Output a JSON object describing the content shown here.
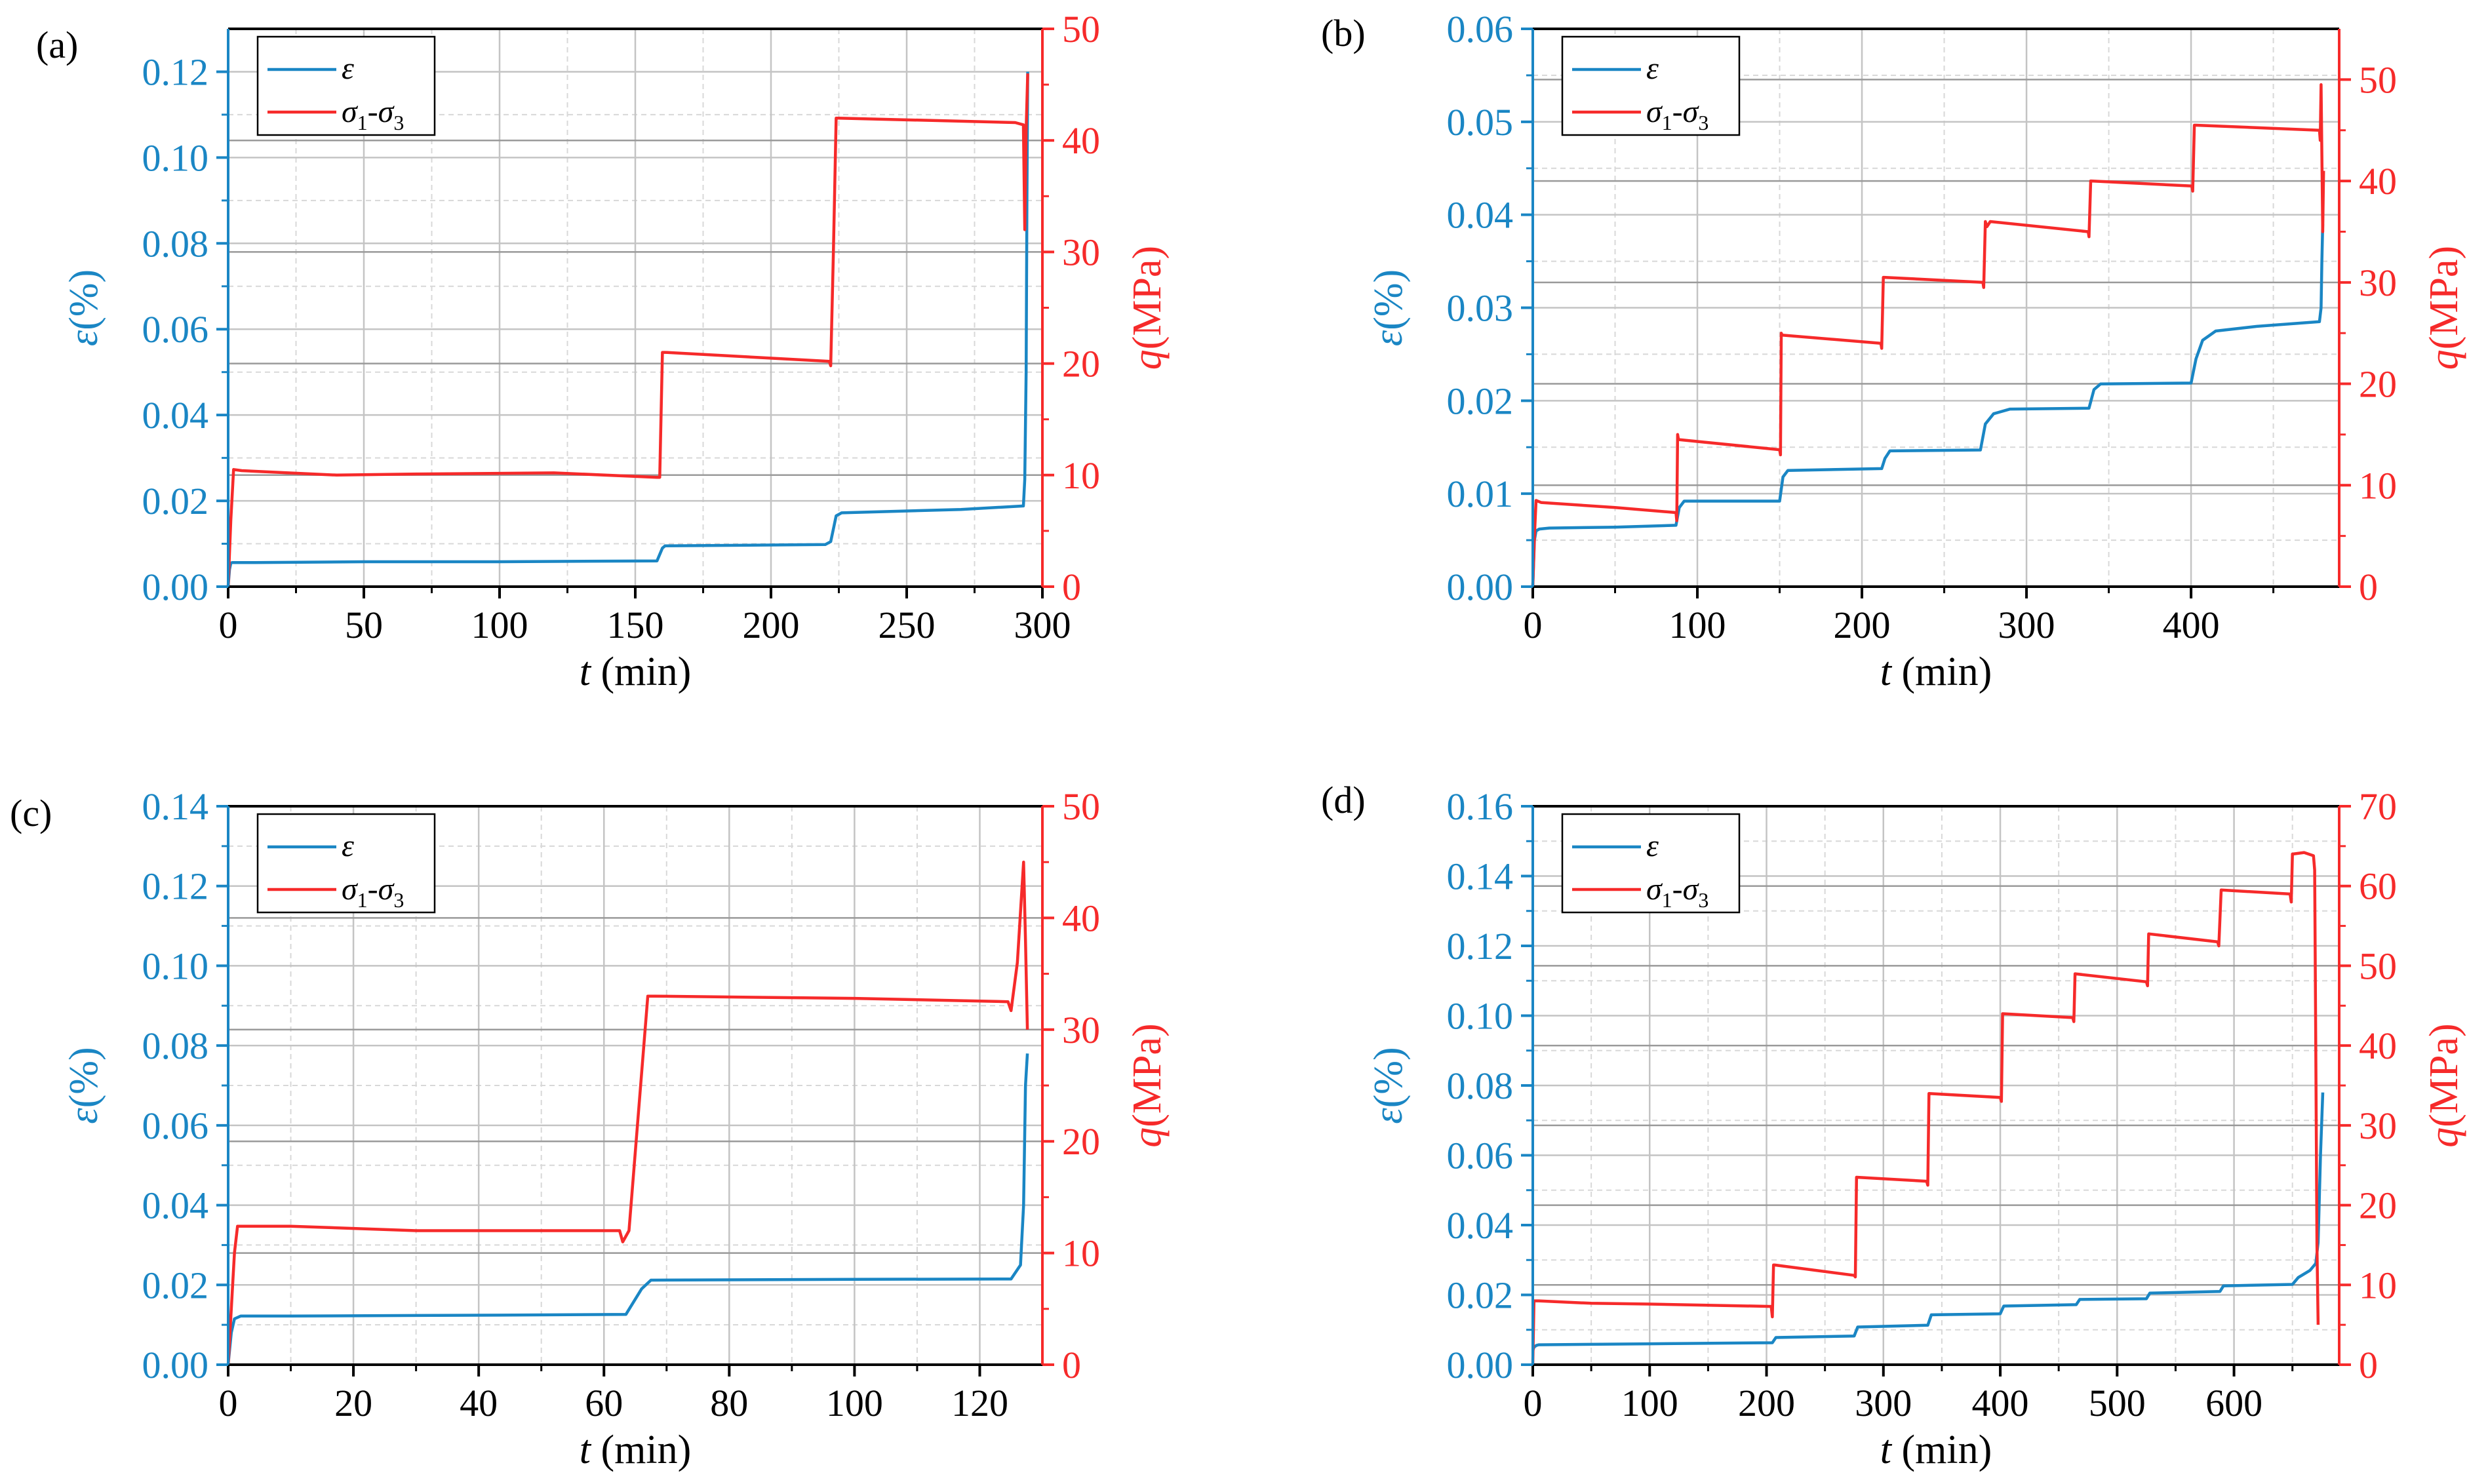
{
  "colors": {
    "strain": "#1a86c4",
    "stress": "#f62a2a",
    "grid": "#d8d8d8",
    "frame": "#000000"
  },
  "legend": {
    "strain_label": "ε",
    "stress_sigma": "σ",
    "stress_sub1": "1",
    "stress_dash": "-",
    "stress_sub3": "3"
  },
  "chart_data": [
    {
      "type": "line",
      "panel_label": "(a)",
      "xlabel_var": "t",
      "xlabel_unit": " (min)",
      "ylabel_left_var": "ε",
      "ylabel_left_unit": "(%)",
      "ylabel_right_var": "q",
      "ylabel_right_unit": "(MPa)",
      "xlim": [
        0,
        300
      ],
      "xticks": [
        0,
        50,
        100,
        150,
        200,
        250,
        300
      ],
      "ylim_left": [
        0,
        0.13
      ],
      "yticks_left": [
        0.0,
        0.02,
        0.04,
        0.06,
        0.08,
        0.1,
        0.12
      ],
      "yticks_left_decimals": 2,
      "ylim_right": [
        0,
        50
      ],
      "yticks_right": [
        0,
        10,
        20,
        30,
        40,
        50
      ],
      "series": [
        {
          "name": "ε",
          "axis": "left",
          "x": [
            0,
            0.5,
            1,
            1.5,
            10,
            50,
            100,
            158,
            160,
            161,
            220,
            222,
            224,
            226,
            270,
            293,
            293.5,
            294,
            294.3,
            294.6
          ],
          "y": [
            0,
            0.004,
            0.0055,
            0.0056,
            0.0056,
            0.0058,
            0.0058,
            0.006,
            0.009,
            0.0095,
            0.0098,
            0.0105,
            0.0165,
            0.0172,
            0.018,
            0.0188,
            0.025,
            0.05,
            0.09,
            0.12
          ]
        },
        {
          "name": "σ1-σ3",
          "axis": "right",
          "x": [
            0,
            1,
            2,
            5,
            40,
            70,
            120,
            158,
            159,
            160,
            161,
            221.5,
            222,
            223,
            224,
            225,
            290,
            293,
            293.5,
            294,
            294.6
          ],
          "y": [
            0,
            6,
            10.5,
            10.4,
            10,
            10.1,
            10.2,
            9.8,
            9.8,
            21,
            21,
            20.2,
            19.8,
            30,
            42,
            42,
            41.6,
            41.4,
            32,
            41,
            46
          ]
        }
      ]
    },
    {
      "type": "line",
      "panel_label": "(b)",
      "xlabel_var": "t",
      "xlabel_unit": " (min)",
      "ylabel_left_var": "ε",
      "ylabel_left_unit": "(%)",
      "ylabel_right_var": "q",
      "ylabel_right_unit": "(MPa)",
      "xlim": [
        0,
        490
      ],
      "xticks": [
        0,
        100,
        200,
        300,
        400
      ],
      "ylim_left": [
        0,
        0.06
      ],
      "yticks_left": [
        0.0,
        0.01,
        0.02,
        0.03,
        0.04,
        0.05,
        0.06
      ],
      "yticks_left_decimals": 2,
      "ylim_right": [
        0,
        55
      ],
      "yticks_right": [
        0,
        10,
        20,
        30,
        40,
        50
      ],
      "series": [
        {
          "name": "ε",
          "axis": "left",
          "x": [
            0,
            1,
            2,
            4,
            10,
            50,
            87,
            89,
            92,
            150,
            152,
            155,
            212,
            214,
            217,
            272,
            275,
            280,
            290,
            338,
            341,
            345,
            400,
            403,
            407,
            415,
            440,
            478,
            479,
            479.5,
            480
          ],
          "y": [
            0,
            0.005,
            0.006,
            0.0062,
            0.0063,
            0.0064,
            0.0066,
            0.0085,
            0.0092,
            0.0092,
            0.0118,
            0.0125,
            0.0127,
            0.0138,
            0.0146,
            0.0147,
            0.0175,
            0.0186,
            0.0191,
            0.0192,
            0.0212,
            0.0218,
            0.0219,
            0.0245,
            0.0265,
            0.0275,
            0.028,
            0.0285,
            0.03,
            0.035,
            0.039
          ]
        },
        {
          "name": "σ1-σ3",
          "axis": "right",
          "x": [
            0,
            1,
            2,
            5,
            50,
            87,
            87.5,
            88,
            88.5,
            150,
            150.5,
            151,
            151.5,
            211.5,
            212,
            213,
            213.5,
            273.5,
            274,
            275,
            276,
            278,
            337.5,
            338,
            339,
            339.5,
            400.5,
            401,
            402,
            403,
            478,
            478.5,
            479,
            480,
            480.5
          ],
          "y": [
            0,
            5,
            8.5,
            8.3,
            7.8,
            7.3,
            6.5,
            15,
            14.5,
            13.5,
            13,
            25,
            24.8,
            24,
            23.5,
            30.5,
            30.5,
            30,
            29.5,
            36,
            35.5,
            36,
            35,
            34.5,
            40,
            40,
            39.5,
            39,
            45.5,
            45.5,
            45,
            44,
            49.5,
            35,
            41
          ]
        }
      ]
    },
    {
      "type": "line",
      "panel_label": "(c)",
      "xlabel_var": "t",
      "xlabel_unit": " (min)",
      "ylabel_left_var": "ε",
      "ylabel_left_unit": "(%)",
      "ylabel_right_var": "q",
      "ylabel_right_unit": "(MPa)",
      "xlim": [
        0,
        130
      ],
      "xticks": [
        0,
        20,
        40,
        60,
        80,
        100,
        120
      ],
      "ylim_left": [
        0,
        0.14
      ],
      "yticks_left": [
        0.0,
        0.02,
        0.04,
        0.06,
        0.08,
        0.1,
        0.12,
        0.14
      ],
      "yticks_left_decimals": 2,
      "ylim_right": [
        0,
        50
      ],
      "yticks_right": [
        0,
        10,
        20,
        30,
        40,
        50
      ],
      "series": [
        {
          "name": "ε",
          "axis": "left",
          "x": [
            0,
            0.5,
            1,
            2,
            10,
            40,
            63.5,
            66,
            67.5,
            100,
            125,
            126.5,
            127,
            127.3,
            127.6
          ],
          "y": [
            0,
            0.008,
            0.0115,
            0.0122,
            0.0122,
            0.0124,
            0.0126,
            0.019,
            0.0212,
            0.0214,
            0.0215,
            0.025,
            0.04,
            0.07,
            0.078
          ]
        },
        {
          "name": "σ1-σ3",
          "axis": "right",
          "x": [
            0,
            1,
            1.5,
            10,
            30,
            62.5,
            63,
            64,
            67,
            68,
            100,
            124.5,
            125,
            126,
            127,
            127.3,
            127.6
          ],
          "y": [
            0,
            10,
            12.4,
            12.4,
            12,
            12,
            11,
            12,
            33,
            33,
            32.8,
            32.5,
            31.7,
            36,
            45,
            38,
            30
          ]
        }
      ]
    },
    {
      "type": "line",
      "panel_label": "(d)",
      "xlabel_var": "t",
      "xlabel_unit": " (min)",
      "ylabel_left_var": "ε",
      "ylabel_left_unit": "(%)",
      "ylabel_right_var": "q",
      "ylabel_right_unit": "(MPa)",
      "xlim": [
        0,
        690
      ],
      "xticks": [
        0,
        100,
        200,
        300,
        400,
        500,
        600
      ],
      "ylim_left": [
        0,
        0.16
      ],
      "yticks_left": [
        0.0,
        0.02,
        0.04,
        0.06,
        0.08,
        0.1,
        0.12,
        0.14,
        0.16
      ],
      "yticks_left_decimals": 2,
      "ylim_right": [
        0,
        70
      ],
      "yticks_right": [
        0,
        10,
        20,
        30,
        40,
        50,
        60,
        70
      ],
      "series": [
        {
          "name": "ε",
          "axis": "left",
          "x": [
            0,
            1,
            3,
            5,
            100,
            205,
            208,
            275,
            278,
            338,
            341,
            400,
            403,
            465,
            468,
            525,
            528,
            588,
            591,
            650,
            655,
            665,
            670,
            672,
            674,
            676
          ],
          "y": [
            0.004,
            0.005,
            0.0055,
            0.0057,
            0.006,
            0.0063,
            0.0078,
            0.0082,
            0.0108,
            0.0113,
            0.0143,
            0.0146,
            0.0168,
            0.0172,
            0.0187,
            0.0189,
            0.0205,
            0.021,
            0.0226,
            0.023,
            0.025,
            0.027,
            0.029,
            0.035,
            0.06,
            0.078
          ]
        },
        {
          "name": "σ1-σ3",
          "axis": "right",
          "x": [
            0,
            1,
            5,
            50,
            100,
            204,
            205,
            206,
            207,
            275,
            276,
            277,
            337,
            338,
            339,
            400,
            401,
            402,
            462,
            463,
            464,
            525,
            526,
            527,
            586,
            587,
            589,
            648,
            649,
            650,
            660,
            668,
            669,
            670,
            671,
            672
          ],
          "y": [
            0,
            8,
            8,
            7.7,
            7.6,
            7.3,
            6,
            12.5,
            12.5,
            11.2,
            11,
            23.5,
            23,
            22.5,
            34,
            33.5,
            33,
            44,
            43.5,
            43,
            49,
            48,
            47.5,
            54,
            53,
            52.5,
            59.5,
            59,
            58,
            64,
            64.2,
            63.8,
            62,
            40,
            15,
            5
          ]
        }
      ]
    }
  ]
}
